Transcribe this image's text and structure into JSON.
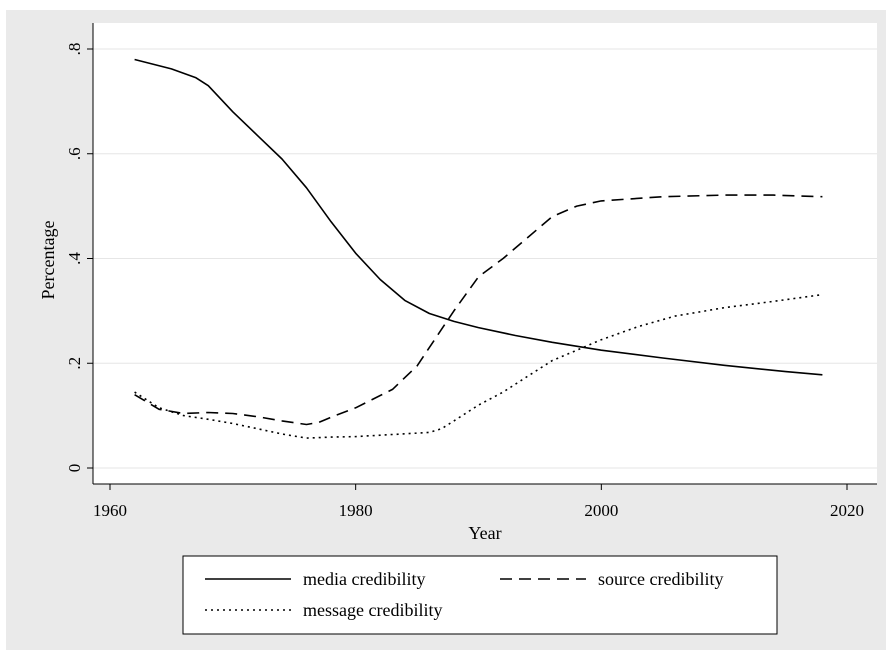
{
  "chart_data": {
    "type": "line",
    "xlabel": "Year",
    "ylabel": "Percentage",
    "xlim": [
      1960,
      2020
    ],
    "ylim": [
      0,
      0.8
    ],
    "x_ticks": [
      1960,
      1980,
      2000,
      2020
    ],
    "x_tick_labels": [
      "1960",
      "1980",
      "2000",
      "2020"
    ],
    "y_ticks": [
      0,
      0.2,
      0.4,
      0.6,
      0.8
    ],
    "y_tick_labels": [
      "0",
      ".2",
      ".4",
      ".6",
      ".8"
    ],
    "grid": "horizontal",
    "legend_position": "bottom",
    "series": [
      {
        "name": "media credibility",
        "style": "solid",
        "color": "#000000",
        "points": [
          [
            1962,
            0.78
          ],
          [
            1965,
            0.762
          ],
          [
            1967,
            0.745
          ],
          [
            1968,
            0.73
          ],
          [
            1970,
            0.68
          ],
          [
            1972,
            0.635
          ],
          [
            1974,
            0.59
          ],
          [
            1976,
            0.535
          ],
          [
            1978,
            0.47
          ],
          [
            1980,
            0.41
          ],
          [
            1982,
            0.36
          ],
          [
            1984,
            0.32
          ],
          [
            1986,
            0.295
          ],
          [
            1988,
            0.28
          ],
          [
            1990,
            0.268
          ],
          [
            1993,
            0.253
          ],
          [
            1996,
            0.24
          ],
          [
            2000,
            0.225
          ],
          [
            2005,
            0.21
          ],
          [
            2010,
            0.196
          ],
          [
            2015,
            0.184
          ],
          [
            2018,
            0.178
          ]
        ]
      },
      {
        "name": "source credibility",
        "style": "dashed",
        "color": "#000000",
        "points": [
          [
            1962,
            0.14
          ],
          [
            1964,
            0.112
          ],
          [
            1966,
            0.104
          ],
          [
            1968,
            0.106
          ],
          [
            1970,
            0.104
          ],
          [
            1972,
            0.098
          ],
          [
            1974,
            0.09
          ],
          [
            1976,
            0.083
          ],
          [
            1977,
            0.087
          ],
          [
            1978,
            0.097
          ],
          [
            1980,
            0.115
          ],
          [
            1983,
            0.15
          ],
          [
            1985,
            0.195
          ],
          [
            1987,
            0.265
          ],
          [
            1988,
            0.3
          ],
          [
            1990,
            0.365
          ],
          [
            1992,
            0.4
          ],
          [
            1994,
            0.44
          ],
          [
            1996,
            0.48
          ],
          [
            1998,
            0.5
          ],
          [
            2000,
            0.51
          ],
          [
            2005,
            0.518
          ],
          [
            2010,
            0.521
          ],
          [
            2014,
            0.521
          ],
          [
            2018,
            0.518
          ]
        ]
      },
      {
        "name": "message credibility",
        "style": "dotted",
        "color": "#000000",
        "points": [
          [
            1962,
            0.145
          ],
          [
            1964,
            0.115
          ],
          [
            1966,
            0.1
          ],
          [
            1968,
            0.093
          ],
          [
            1970,
            0.085
          ],
          [
            1972,
            0.075
          ],
          [
            1974,
            0.065
          ],
          [
            1976,
            0.057
          ],
          [
            1978,
            0.059
          ],
          [
            1980,
            0.06
          ],
          [
            1983,
            0.064
          ],
          [
            1986,
            0.068
          ],
          [
            1987,
            0.075
          ],
          [
            1988,
            0.09
          ],
          [
            1990,
            0.12
          ],
          [
            1992,
            0.145
          ],
          [
            1994,
            0.175
          ],
          [
            1996,
            0.205
          ],
          [
            1998,
            0.225
          ],
          [
            2000,
            0.245
          ],
          [
            2003,
            0.27
          ],
          [
            2006,
            0.29
          ],
          [
            2010,
            0.306
          ],
          [
            2014,
            0.318
          ],
          [
            2018,
            0.331
          ]
        ]
      }
    ]
  }
}
